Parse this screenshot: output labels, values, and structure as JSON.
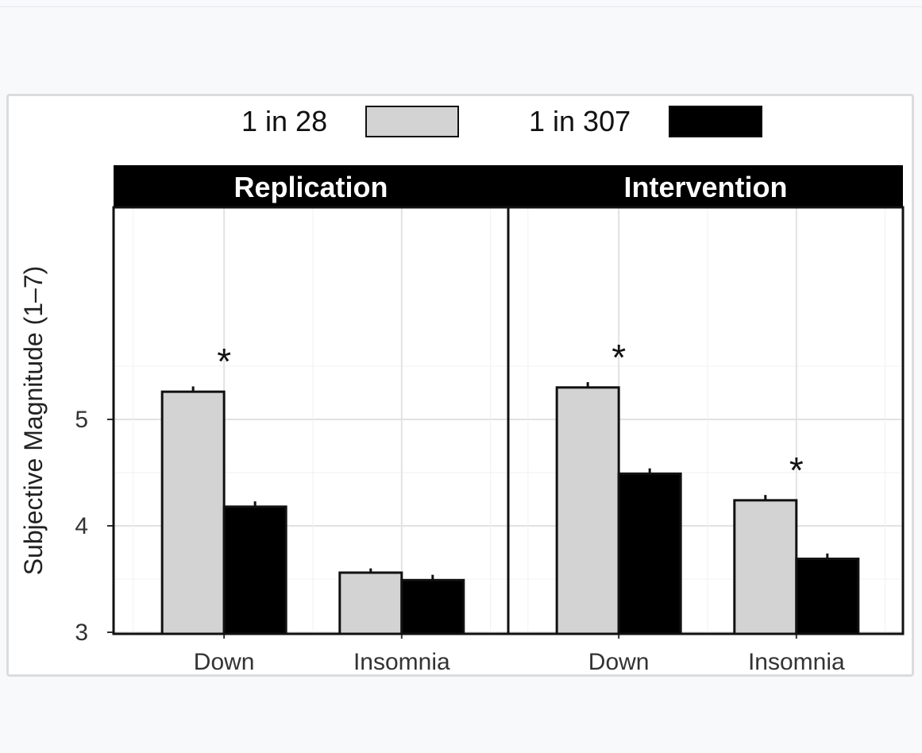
{
  "chart_data": {
    "type": "bar",
    "ylabel": "Subjective Magnitude (1–7)",
    "ylim": [
      2,
      6
    ],
    "yticks": [
      3,
      4,
      5
    ],
    "grid": true,
    "legend_placement": "top",
    "categories": [
      "Down",
      "Insomnia"
    ],
    "panels": [
      {
        "title": "Replication",
        "series": [
          {
            "name": "1 in 28",
            "values": [
              5.26,
              3.56
            ],
            "errors": [
              0.05,
              0.04
            ]
          },
          {
            "name": "1 in 307",
            "values": [
              4.18,
              3.49
            ],
            "errors": [
              0.05,
              0.05
            ]
          }
        ],
        "significant": [
          true,
          false
        ]
      },
      {
        "title": "Intervention",
        "series": [
          {
            "name": "1 in 28",
            "values": [
              5.3,
              4.24
            ],
            "errors": [
              0.05,
              0.05
            ]
          },
          {
            "name": "1 in 307",
            "values": [
              4.49,
              3.69
            ],
            "errors": [
              0.05,
              0.05
            ]
          }
        ],
        "significant": [
          true,
          true
        ]
      }
    ],
    "legend": [
      {
        "label": "1 in 28",
        "color": "#d3d3d3"
      },
      {
        "label": "1 in 307",
        "color": "#000000"
      }
    ],
    "annotation_symbol": "*",
    "colors": {
      "light_bar": "#d3d3d3",
      "dark_bar": "#000000",
      "strip": "#000000",
      "grid": "#e6e6e6"
    }
  }
}
